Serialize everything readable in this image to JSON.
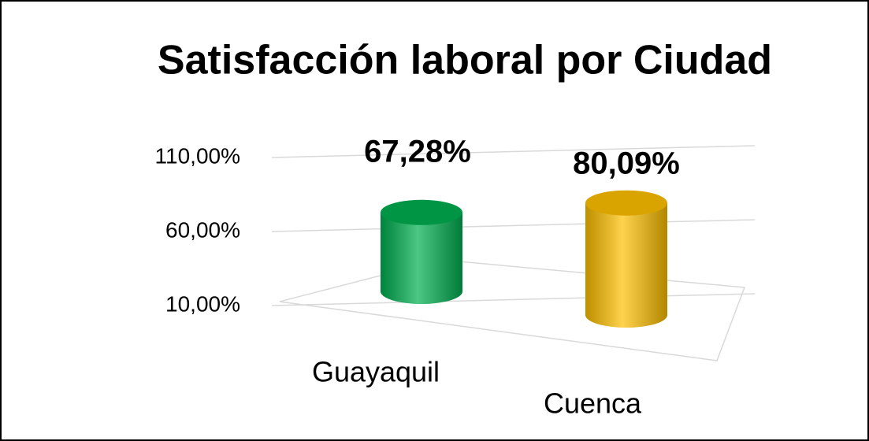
{
  "chart_data": {
    "type": "bar3d",
    "title": "Satisfacción laboral por Ciudad",
    "categories": [
      "Guayaquil",
      "Cuenca"
    ],
    "values": [
      67.28,
      80.09
    ],
    "value_labels": [
      "67,28%",
      "80,09%"
    ],
    "colors": [
      "#00b050",
      "#ffc000"
    ],
    "ylim": [
      10,
      110
    ],
    "yticks": [
      {
        "value": 10,
        "label": "10,00%"
      },
      {
        "value": 60,
        "label": "60,00%"
      },
      {
        "value": 110,
        "label": "110,00%"
      }
    ],
    "grid": true
  }
}
